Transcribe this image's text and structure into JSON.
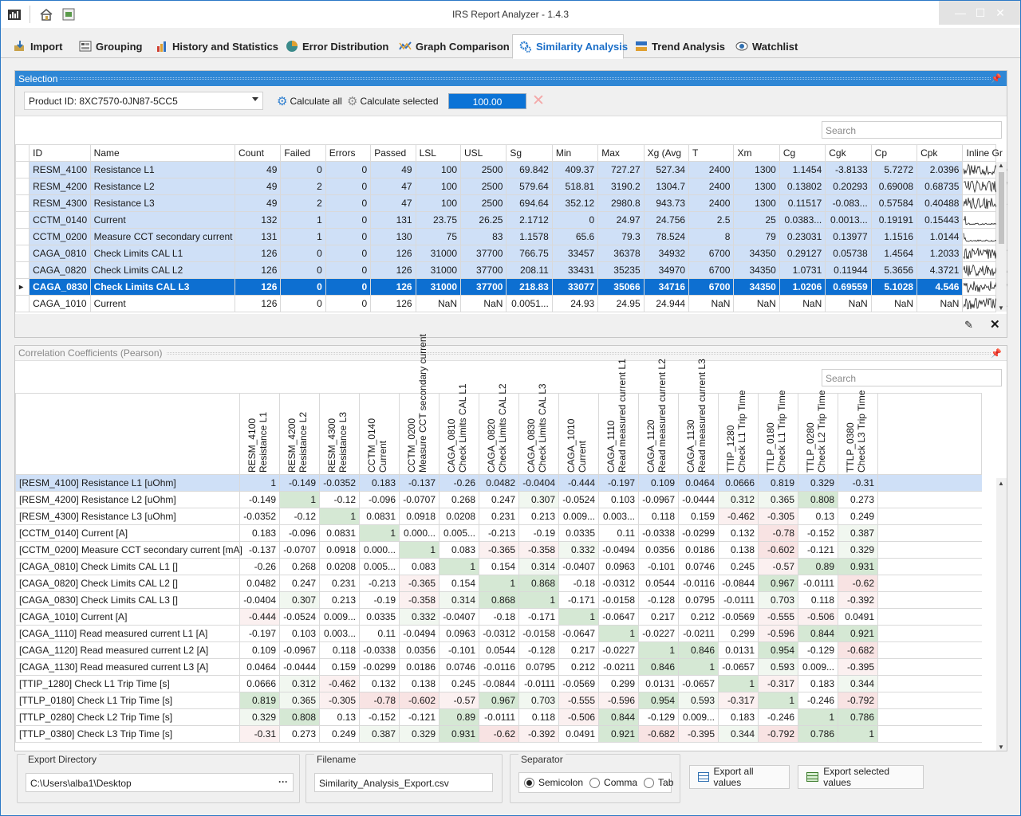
{
  "window": {
    "title": "IRS Report Analyzer - 1.4.3"
  },
  "tabs": [
    {
      "label": "Import",
      "icon": "import-icon"
    },
    {
      "label": "Grouping",
      "icon": "grouping-icon"
    },
    {
      "label": "History and Statistics",
      "icon": "history-icon"
    },
    {
      "label": "Error Distribution",
      "icon": "pie-icon"
    },
    {
      "label": "Graph Comparison",
      "icon": "graph-icon"
    },
    {
      "label": "Similarity Analysis",
      "icon": "gears-icon"
    },
    {
      "label": "Trend Analysis",
      "icon": "trend-icon"
    },
    {
      "label": "Watchlist",
      "icon": "eye-icon"
    }
  ],
  "active_tab": "Similarity Analysis",
  "selection": {
    "title": "Selection",
    "product": "Product ID: 8XC7570-0JN87-5CC5",
    "calc_all": "Calculate all",
    "calc_selected": "Calculate selected",
    "progress_text": "100.00",
    "progress": 1.0,
    "search_placeholder": "Search",
    "columns": [
      "ID",
      "Name",
      "Count",
      "Failed",
      "Errors",
      "Passed",
      "LSL",
      "USL",
      "Sg",
      "Min",
      "Max",
      "Xg (Avg",
      "T",
      "Xm",
      "Cg",
      "Cgk",
      "Cp",
      "Cpk",
      "Inline Gr"
    ],
    "rows": [
      [
        "RESM_4100",
        "Resistance L1",
        "49",
        "0",
        "0",
        "49",
        "100",
        "2500",
        "69.842",
        "409.37",
        "727.27",
        "527.34",
        "2400",
        "1300",
        "1.1454",
        "-3.8133",
        "5.7272",
        "2.0396"
      ],
      [
        "RESM_4200",
        "Resistance L2",
        "49",
        "2",
        "0",
        "47",
        "100",
        "2500",
        "579.64",
        "518.81",
        "3190.2",
        "1304.7",
        "2400",
        "1300",
        "0.13802",
        "0.20293",
        "0.69008",
        "0.68735"
      ],
      [
        "RESM_4300",
        "Resistance L3",
        "49",
        "2",
        "0",
        "47",
        "100",
        "2500",
        "694.64",
        "352.12",
        "2980.8",
        "943.73",
        "2400",
        "1300",
        "0.11517",
        "-0.083...",
        "0.57584",
        "0.40488"
      ],
      [
        "CCTM_0140",
        "Current",
        "132",
        "1",
        "0",
        "131",
        "23.75",
        "26.25",
        "2.1712",
        "0",
        "24.97",
        "24.756",
        "2.5",
        "25",
        "0.0383...",
        "0.0013...",
        "0.19191",
        "0.15443"
      ],
      [
        "CCTM_0200",
        "Measure CCT secondary current",
        "131",
        "1",
        "0",
        "130",
        "75",
        "83",
        "1.1578",
        "65.6",
        "79.3",
        "78.524",
        "8",
        "79",
        "0.23031",
        "0.13977",
        "1.1516",
        "1.0144"
      ],
      [
        "CAGA_0810",
        "Check Limits CAL L1",
        "126",
        "0",
        "0",
        "126",
        "31000",
        "37700",
        "766.75",
        "33457",
        "36378",
        "34932",
        "6700",
        "34350",
        "0.29127",
        "0.05738",
        "1.4564",
        "1.2033"
      ],
      [
        "CAGA_0820",
        "Check Limits CAL L2",
        "126",
        "0",
        "0",
        "126",
        "31000",
        "37700",
        "208.11",
        "33431",
        "35235",
        "34970",
        "6700",
        "34350",
        "1.0731",
        "0.11944",
        "5.3656",
        "4.3721"
      ],
      [
        "CAGA_0830",
        "Check Limits CAL L3",
        "126",
        "0",
        "0",
        "126",
        "31000",
        "37700",
        "218.83",
        "33077",
        "35066",
        "34716",
        "6700",
        "34350",
        "1.0206",
        "0.69559",
        "5.1028",
        "4.546"
      ],
      [
        "CAGA_1010",
        "Current",
        "126",
        "0",
        "0",
        "126",
        "NaN",
        "NaN",
        "0.0051...",
        "24.93",
        "24.95",
        "24.944",
        "NaN",
        "NaN",
        "NaN",
        "NaN",
        "NaN",
        "NaN"
      ]
    ],
    "selected_rows": [
      0,
      1,
      2,
      3,
      4,
      5,
      6
    ],
    "current_row": 7
  },
  "correlation": {
    "title": "Correlation Coefficients (Pearson)",
    "search_placeholder": "Search",
    "col_headers": [
      [
        "RESM_4100",
        "Resistance L1"
      ],
      [
        "RESM_4200",
        "Resistance L2"
      ],
      [
        "RESM_4300",
        "Resistance L3"
      ],
      [
        "CCTM_0140",
        "Current"
      ],
      [
        "CCTM_0200",
        "Measure CCT secondary current"
      ],
      [
        "CAGA_0810",
        "Check Limits CAL L1"
      ],
      [
        "CAGA_0820",
        "Check Limits CAL L2"
      ],
      [
        "CAGA_0830",
        "Check Limits CAL L3"
      ],
      [
        "CAGA_1010",
        "Current"
      ],
      [
        "CAGA_1110",
        "Read measured current L1"
      ],
      [
        "CAGA_1120",
        "Read measured current L2"
      ],
      [
        "CAGA_1130",
        "Read measured current L3"
      ],
      [
        "TTIP_1280",
        "Check L1 Trip Time"
      ],
      [
        "TTLP_0180",
        "Check L1 Trip Time"
      ],
      [
        "TTLP_0280",
        "Check L2 Trip Time"
      ],
      [
        "TTLP_0380",
        "Check L3 Trip Time"
      ]
    ],
    "row_labels": [
      "[RESM_4100] Resistance L1 [uOhm]",
      "[RESM_4200] Resistance L2 [uOhm]",
      "[RESM_4300] Resistance L3 [uOhm]",
      "[CCTM_0140] Current [A]",
      "[CCTM_0200] Measure CCT secondary current [mA]",
      "[CAGA_0810] Check Limits CAL L1 []",
      "[CAGA_0820] Check Limits CAL L2 []",
      "[CAGA_0830] Check Limits CAL L3 []",
      "[CAGA_1010] Current [A]",
      "[CAGA_1110] Read measured current L1 [A]",
      "[CAGA_1120] Read measured current L2 [A]",
      "[CAGA_1130] Read measured current L3 [A]",
      "[TTIP_1280] Check L1 Trip Time [s]",
      "[TTLP_0180] Check L1 Trip Time [s]",
      "[TTLP_0280] Check L2 Trip Time [s]",
      "[TTLP_0380] Check L3 Trip Time [s]"
    ],
    "display": [
      [
        "1",
        "-0.149",
        "-0.0352",
        "0.183",
        "-0.137",
        "-0.26",
        "0.0482",
        "-0.0404",
        "-0.444",
        "-0.197",
        "0.109",
        "0.0464",
        "0.0666",
        "0.819",
        "0.329",
        "-0.31"
      ],
      [
        "-0.149",
        "1",
        "-0.12",
        "-0.096",
        "-0.0707",
        "0.268",
        "0.247",
        "0.307",
        "-0.0524",
        "0.103",
        "-0.0967",
        "-0.0444",
        "0.312",
        "0.365",
        "0.808",
        "0.273"
      ],
      [
        "-0.0352",
        "-0.12",
        "1",
        "0.0831",
        "0.0918",
        "0.0208",
        "0.231",
        "0.213",
        "0.009...",
        "0.003...",
        "0.118",
        "0.159",
        "-0.462",
        "-0.305",
        "0.13",
        "0.249"
      ],
      [
        "0.183",
        "-0.096",
        "0.0831",
        "1",
        "0.000...",
        "0.005...",
        "-0.213",
        "-0.19",
        "0.0335",
        "0.11",
        "-0.0338",
        "-0.0299",
        "0.132",
        "-0.78",
        "-0.152",
        "0.387"
      ],
      [
        "-0.137",
        "-0.0707",
        "0.0918",
        "0.000...",
        "1",
        "0.083",
        "-0.365",
        "-0.358",
        "0.332",
        "-0.0494",
        "0.0356",
        "0.0186",
        "0.138",
        "-0.602",
        "-0.121",
        "0.329"
      ],
      [
        "-0.26",
        "0.268",
        "0.0208",
        "0.005...",
        "0.083",
        "1",
        "0.154",
        "0.314",
        "-0.0407",
        "0.0963",
        "-0.101",
        "0.0746",
        "0.245",
        "-0.57",
        "0.89",
        "0.931"
      ],
      [
        "0.0482",
        "0.247",
        "0.231",
        "-0.213",
        "-0.365",
        "0.154",
        "1",
        "0.868",
        "-0.18",
        "-0.0312",
        "0.0544",
        "-0.0116",
        "-0.0844",
        "0.967",
        "-0.0111",
        "-0.62"
      ],
      [
        "-0.0404",
        "0.307",
        "0.213",
        "-0.19",
        "-0.358",
        "0.314",
        "0.868",
        "1",
        "-0.171",
        "-0.0158",
        "-0.128",
        "0.0795",
        "-0.0111",
        "0.703",
        "0.118",
        "-0.392"
      ],
      [
        "-0.444",
        "-0.0524",
        "0.009...",
        "0.0335",
        "0.332",
        "-0.0407",
        "-0.18",
        "-0.171",
        "1",
        "-0.0647",
        "0.217",
        "0.212",
        "-0.0569",
        "-0.555",
        "-0.506",
        "0.0491"
      ],
      [
        "-0.197",
        "0.103",
        "0.003...",
        "0.11",
        "-0.0494",
        "0.0963",
        "-0.0312",
        "-0.0158",
        "-0.0647",
        "1",
        "-0.0227",
        "-0.0211",
        "0.299",
        "-0.596",
        "0.844",
        "0.921"
      ],
      [
        "0.109",
        "-0.0967",
        "0.118",
        "-0.0338",
        "0.0356",
        "-0.101",
        "0.0544",
        "-0.128",
        "0.217",
        "-0.0227",
        "1",
        "0.846",
        "0.0131",
        "0.954",
        "-0.129",
        "-0.682"
      ],
      [
        "0.0464",
        "-0.0444",
        "0.159",
        "-0.0299",
        "0.0186",
        "0.0746",
        "-0.0116",
        "0.0795",
        "0.212",
        "-0.0211",
        "0.846",
        "1",
        "-0.0657",
        "0.593",
        "0.009...",
        "-0.395"
      ],
      [
        "0.0666",
        "0.312",
        "-0.462",
        "0.132",
        "0.138",
        "0.245",
        "-0.0844",
        "-0.0111",
        "-0.0569",
        "0.299",
        "0.0131",
        "-0.0657",
        "1",
        "-0.317",
        "0.183",
        "0.344"
      ],
      [
        "0.819",
        "0.365",
        "-0.305",
        "-0.78",
        "-0.602",
        "-0.57",
        "0.967",
        "0.703",
        "-0.555",
        "-0.596",
        "0.954",
        "0.593",
        "-0.317",
        "1",
        "-0.246",
        "-0.792"
      ],
      [
        "0.329",
        "0.808",
        "0.13",
        "-0.152",
        "-0.121",
        "0.89",
        "-0.0111",
        "0.118",
        "-0.506",
        "0.844",
        "-0.129",
        "0.009...",
        "0.183",
        "-0.246",
        "1",
        "0.786"
      ],
      [
        "-0.31",
        "0.273",
        "0.249",
        "0.387",
        "0.329",
        "0.931",
        "-0.62",
        "-0.392",
        "0.0491",
        "0.921",
        "-0.682",
        "-0.395",
        "0.344",
        "-0.792",
        "0.786",
        "1"
      ]
    ],
    "selected_row": 0,
    "colors": {
      "positive": "#d5e8d4",
      "negative": "#f8e3e3",
      "selected": "#cfe0f7"
    }
  },
  "export": {
    "dir_label": "Export Directory",
    "dir_value": "C:\\Users\\alba1\\Desktop",
    "browse": "···",
    "file_label": "Filename",
    "file_value": "Similarity_Analysis_Export.csv",
    "sep_label": "Separator",
    "sep_options": [
      "Semicolon",
      "Comma",
      "Tab"
    ],
    "sep_selected": "Semicolon",
    "export_all": "Export all values",
    "export_selected": "Export selected values"
  }
}
